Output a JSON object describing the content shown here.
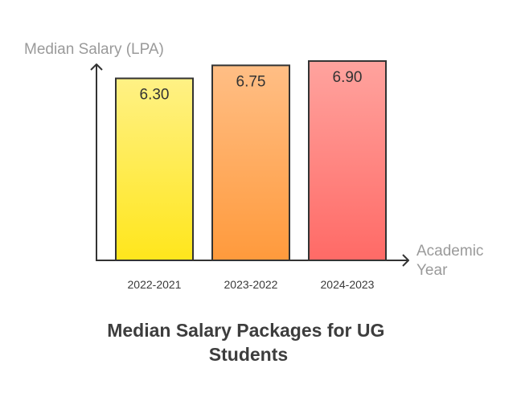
{
  "chart_data": {
    "type": "bar",
    "title": "Median Salary Packages for UG Students",
    "title_lines": [
      "Median Salary Packages for UG",
      "Students"
    ],
    "ylabel": "Median Salary (LPA)",
    "xlabel": "Academic Year",
    "xlabel_lines": [
      "Academic",
      "Year"
    ],
    "categories": [
      "2022-2021",
      "2023-2022",
      "2024-2023"
    ],
    "values": [
      6.3,
      6.75,
      6.9
    ],
    "value_labels": [
      "6.30",
      "6.75",
      "6.90"
    ],
    "ylim": [
      0,
      7.65
    ],
    "grid": false,
    "legend": "none",
    "colors": [
      {
        "top": "#fff185",
        "bottom": "#ffe61c"
      },
      {
        "top": "#ffbe85",
        "bottom": "#ff9a3c"
      },
      {
        "top": "#ffa39e",
        "bottom": "#ff6a66"
      }
    ],
    "axis_color": "#333333"
  }
}
